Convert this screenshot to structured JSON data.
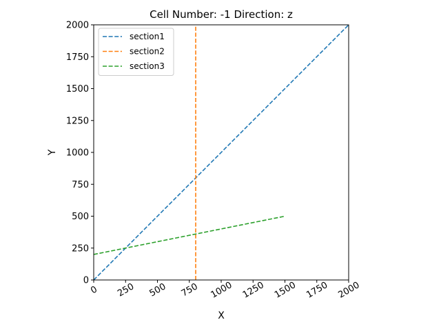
{
  "chart_data": {
    "type": "line",
    "title": "Cell Number: -1 Direction: z",
    "xlabel": "X",
    "ylabel": "Y",
    "xlim": [
      0,
      2000
    ],
    "ylim": [
      0,
      2000
    ],
    "xticks": [
      0,
      250,
      500,
      750,
      1000,
      1250,
      1500,
      1750,
      2000
    ],
    "yticks": [
      0,
      250,
      500,
      750,
      1000,
      1250,
      1500,
      1750,
      2000
    ],
    "xtick_rotation": 30,
    "grid": false,
    "legend": {
      "placement": "upper-left"
    },
    "series": [
      {
        "name": "section1",
        "color": "#1f77b4",
        "linestyle": "dashed",
        "points": [
          [
            0,
            0
          ],
          [
            2000,
            2000
          ]
        ]
      },
      {
        "name": "section2",
        "color": "#ff7f0e",
        "linestyle": "dashed",
        "points": [
          [
            800,
            0
          ],
          [
            800,
            2000
          ]
        ]
      },
      {
        "name": "section3",
        "color": "#2ca02c",
        "linestyle": "dashed",
        "points": [
          [
            0,
            200
          ],
          [
            1500,
            500
          ]
        ]
      }
    ]
  }
}
